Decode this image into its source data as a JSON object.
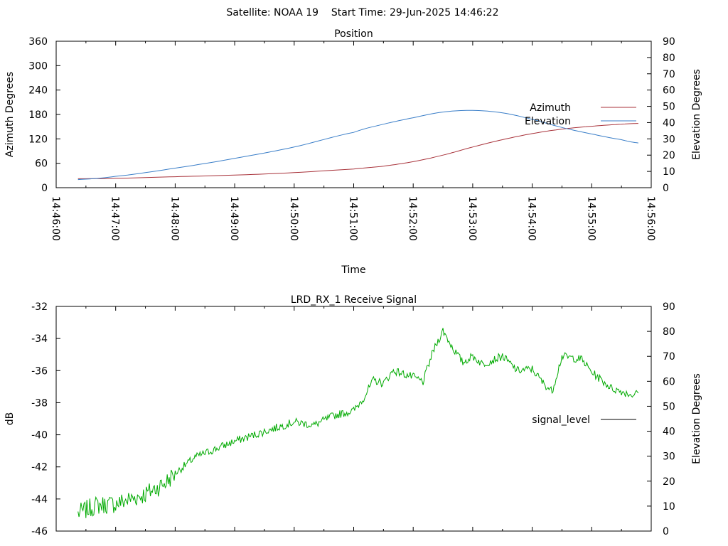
{
  "header": {
    "title": "Satellite: NOAA 19    Start Time: 29-Jun-2025 14:46:22"
  },
  "chart_data": [
    {
      "type": "line",
      "title": "Position",
      "xlabel": "Time",
      "ylabel": "Azimuth Degrees",
      "y2label": "Elevation Degrees",
      "x_tick_labels": [
        "14:46:00",
        "14:47:00",
        "14:48:00",
        "14:49:00",
        "14:50:00",
        "14:51:00",
        "14:52:00",
        "14:53:00",
        "14:54:00",
        "14:55:00",
        "14:56:00"
      ],
      "xlim": [
        "14:46:00",
        "14:56:00"
      ],
      "ylim": [
        0,
        360
      ],
      "y2lim": [
        0,
        90
      ],
      "y_ticks": [
        0,
        60,
        120,
        180,
        240,
        300,
        360
      ],
      "y2_ticks": [
        0,
        10,
        20,
        30,
        40,
        50,
        60,
        70,
        80,
        90
      ],
      "legend_position": "right",
      "series": [
        {
          "name": "Azimuth",
          "axis": "y",
          "color": "#a8323a",
          "x": [
            "14:46:22",
            "14:47:00",
            "14:48:00",
            "14:49:00",
            "14:50:00",
            "14:51:00",
            "14:51:30",
            "14:52:00",
            "14:52:30",
            "14:53:00",
            "14:53:30",
            "14:54:00",
            "14:54:30",
            "14:55:00",
            "14:55:30",
            "14:55:47"
          ],
          "values": [
            22,
            23,
            27,
            31,
            37,
            46,
            53,
            64,
            80,
            100,
            118,
            133,
            144,
            151,
            156,
            158
          ]
        },
        {
          "name": "Elevation",
          "axis": "y2",
          "color": "#3a7ec8",
          "x": [
            "14:46:22",
            "14:47:00",
            "14:48:00",
            "14:49:00",
            "14:50:00",
            "14:51:00",
            "14:51:30",
            "14:52:00",
            "14:52:30",
            "14:53:00",
            "14:53:30",
            "14:54:00",
            "14:54:30",
            "14:55:00",
            "14:55:30",
            "14:55:47"
          ],
          "values": [
            5,
            7,
            12,
            18,
            25,
            34,
            39,
            43,
            46.5,
            47.5,
            46,
            42,
            37,
            33,
            29.5,
            27.5
          ]
        }
      ]
    },
    {
      "type": "line",
      "title": "LRD_RX_1 Receive Signal",
      "xlabel": "",
      "ylabel": "dB",
      "y2label": "Elevation Degrees",
      "xlim": [
        "14:46:00",
        "14:56:00"
      ],
      "ylim": [
        -46,
        -32
      ],
      "y2lim": [
        0,
        90
      ],
      "y_ticks": [
        -46,
        -44,
        -42,
        -40,
        -38,
        -36,
        -34,
        -32
      ],
      "y2_ticks": [
        0,
        10,
        20,
        30,
        40,
        50,
        60,
        70,
        80,
        90
      ],
      "legend_position": "right",
      "series": [
        {
          "name": "signal_level",
          "axis": "y",
          "color": "#00aa00",
          "x": [
            "14:46:22",
            "14:46:40",
            "14:47:00",
            "14:47:30",
            "14:47:50",
            "14:48:00",
            "14:48:20",
            "14:48:40",
            "14:49:00",
            "14:49:30",
            "14:50:00",
            "14:50:20",
            "14:50:40",
            "14:51:00",
            "14:51:10",
            "14:51:20",
            "14:51:30",
            "14:51:40",
            "14:52:00",
            "14:52:10",
            "14:52:20",
            "14:52:30",
            "14:52:40",
            "14:52:50",
            "14:53:00",
            "14:53:10",
            "14:53:30",
            "14:53:45",
            "14:54:00",
            "14:54:10",
            "14:54:20",
            "14:54:30",
            "14:54:50",
            "14:55:00",
            "14:55:20",
            "14:55:40",
            "14:55:47"
          ],
          "values": [
            -44.9,
            -44.4,
            -44.3,
            -43.7,
            -43.0,
            -42.4,
            -41.4,
            -40.9,
            -40.4,
            -39.8,
            -39.2,
            -39.4,
            -38.8,
            -38.5,
            -37.7,
            -36.6,
            -36.8,
            -36.0,
            -36.4,
            -36.7,
            -34.8,
            -33.5,
            -34.6,
            -35.5,
            -35.1,
            -35.6,
            -35.1,
            -36.0,
            -35.9,
            -36.7,
            -37.3,
            -35.1,
            -35.3,
            -36.1,
            -37.1,
            -37.5,
            -37.4
          ]
        }
      ]
    }
  ]
}
